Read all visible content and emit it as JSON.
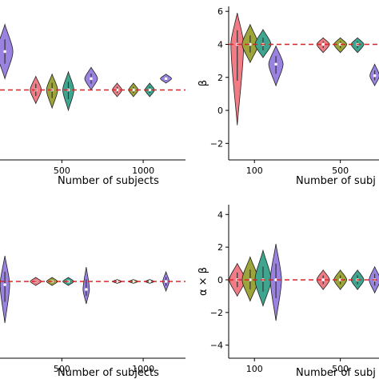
{
  "chart_data": [
    {
      "type": "violin",
      "panel": "top-left",
      "xlabel": "Number of subjects",
      "ylabel": "",
      "xticks": [
        {
          "x": 500,
          "label": "500"
        },
        {
          "x": 1000,
          "label": "1000"
        }
      ],
      "yticks": [],
      "xlim": [
        120,
        1260
      ],
      "ylim": [
        -1.6,
        5.2
      ],
      "reference_y": 1.5,
      "violins": [
        {
          "x": 150,
          "center": 3.2,
          "low": 2.0,
          "high": 4.4,
          "width": 10,
          "color": "#9a82e0"
        },
        {
          "x": 340,
          "center": 1.5,
          "low": 0.9,
          "high": 2.1,
          "width": 7,
          "color": "#f17c86"
        },
        {
          "x": 440,
          "center": 1.5,
          "low": 0.7,
          "high": 2.2,
          "width": 7,
          "color": "#9ca43a"
        },
        {
          "x": 540,
          "center": 1.5,
          "low": 0.6,
          "high": 2.3,
          "width": 7,
          "color": "#3fa58f"
        },
        {
          "x": 680,
          "center": 2.0,
          "low": 1.5,
          "high": 2.5,
          "width": 8,
          "color": "#9a82e0"
        },
        {
          "x": 840,
          "center": 1.5,
          "low": 1.2,
          "high": 1.8,
          "width": 6,
          "color": "#f17c86"
        },
        {
          "x": 940,
          "center": 1.5,
          "low": 1.2,
          "high": 1.8,
          "width": 6,
          "color": "#9ca43a"
        },
        {
          "x": 1040,
          "center": 1.5,
          "low": 1.2,
          "high": 1.8,
          "width": 6,
          "color": "#3fa58f"
        },
        {
          "x": 1140,
          "center": 2.0,
          "low": 1.8,
          "high": 2.2,
          "width": 7,
          "color": "#9a82e0"
        }
      ]
    },
    {
      "type": "violin",
      "panel": "top-right",
      "xlabel": "Number of subj",
      "ylabel": "β",
      "xticks": [
        {
          "x": 100,
          "label": "100"
        },
        {
          "x": 500,
          "label": "500"
        }
      ],
      "yticks": [
        -2,
        0,
        2,
        4,
        6
      ],
      "xlim": [
        -20,
        680
      ],
      "ylim": [
        -3,
        6.3
      ],
      "reference_y": 4,
      "violins": [
        {
          "x": 20,
          "center": 4.0,
          "low": -0.9,
          "high": 5.9,
          "width": 8,
          "color": "#f17c86"
        },
        {
          "x": 80,
          "center": 4.0,
          "low": 2.9,
          "high": 5.2,
          "width": 10,
          "color": "#9ca43a"
        },
        {
          "x": 140,
          "center": 4.0,
          "low": 3.2,
          "high": 4.9,
          "width": 10,
          "color": "#3fa58f"
        },
        {
          "x": 200,
          "center": 2.8,
          "low": 1.5,
          "high": 3.9,
          "width": 9,
          "color": "#9a82e0"
        },
        {
          "x": 420,
          "center": 4.0,
          "low": 3.5,
          "high": 4.4,
          "width": 8,
          "color": "#f17c86"
        },
        {
          "x": 500,
          "center": 4.0,
          "low": 3.5,
          "high": 4.4,
          "width": 8,
          "color": "#9ca43a"
        },
        {
          "x": 580,
          "center": 4.0,
          "low": 3.5,
          "high": 4.4,
          "width": 8,
          "color": "#3fa58f"
        },
        {
          "x": 660,
          "center": 2.1,
          "low": 1.5,
          "high": 2.8,
          "width": 6,
          "color": "#9a82e0"
        }
      ]
    },
    {
      "type": "violin",
      "panel": "bottom-left",
      "xlabel": "Number of subjects",
      "ylabel": "",
      "xticks": [
        {
          "x": 500,
          "label": "500"
        },
        {
          "x": 1000,
          "label": "1000"
        }
      ],
      "yticks": [],
      "xlim": [
        120,
        1260
      ],
      "ylim": [
        -4.8,
        4.8
      ],
      "reference_y": 0,
      "violins": [
        {
          "x": 150,
          "center": -0.2,
          "low": -2.6,
          "high": 1.6,
          "width": 6,
          "color": "#9a82e0"
        },
        {
          "x": 340,
          "center": 0,
          "low": -0.25,
          "high": 0.25,
          "width": 7,
          "color": "#f17c86"
        },
        {
          "x": 440,
          "center": 0,
          "low": -0.25,
          "high": 0.25,
          "width": 7,
          "color": "#9ca43a"
        },
        {
          "x": 540,
          "center": 0,
          "low": -0.25,
          "high": 0.25,
          "width": 7,
          "color": "#3fa58f"
        },
        {
          "x": 650,
          "center": -0.5,
          "low": -1.4,
          "high": 0.9,
          "width": 4,
          "color": "#9a82e0"
        },
        {
          "x": 840,
          "center": 0,
          "low": -0.12,
          "high": 0.12,
          "width": 6,
          "color": "#f17c86"
        },
        {
          "x": 940,
          "center": 0,
          "low": -0.12,
          "high": 0.12,
          "width": 6,
          "color": "#9ca43a"
        },
        {
          "x": 1040,
          "center": 0,
          "low": -0.12,
          "high": 0.12,
          "width": 6,
          "color": "#3fa58f"
        },
        {
          "x": 1140,
          "center": 0,
          "low": -0.6,
          "high": 0.6,
          "width": 4,
          "color": "#9a82e0"
        }
      ]
    },
    {
      "type": "violin",
      "panel": "bottom-right",
      "xlabel": "Number of subj",
      "ylabel": "α × β",
      "xticks": [
        {
          "x": 100,
          "label": "100"
        },
        {
          "x": 500,
          "label": "500"
        }
      ],
      "yticks": [
        -4,
        -2,
        0,
        2,
        4
      ],
      "xlim": [
        -20,
        680
      ],
      "ylim": [
        -4.8,
        4.6
      ],
      "reference_y": 0,
      "violins": [
        {
          "x": 20,
          "center": 0,
          "low": -1.0,
          "high": 1.0,
          "width": 10,
          "color": "#f17c86"
        },
        {
          "x": 80,
          "center": 0,
          "low": -1.3,
          "high": 1.4,
          "width": 10,
          "color": "#9ca43a"
        },
        {
          "x": 140,
          "center": 0,
          "low": -1.6,
          "high": 1.8,
          "width": 10,
          "color": "#3fa58f"
        },
        {
          "x": 200,
          "center": 0,
          "low": -2.5,
          "high": 2.2,
          "width": 7,
          "color": "#9a82e0"
        },
        {
          "x": 420,
          "center": 0,
          "low": -0.6,
          "high": 0.6,
          "width": 8,
          "color": "#f17c86"
        },
        {
          "x": 500,
          "center": 0,
          "low": -0.6,
          "high": 0.6,
          "width": 8,
          "color": "#9ca43a"
        },
        {
          "x": 580,
          "center": 0,
          "low": -0.6,
          "high": 0.6,
          "width": 8,
          "color": "#3fa58f"
        },
        {
          "x": 660,
          "center": 0,
          "low": -0.8,
          "high": 0.8,
          "width": 7,
          "color": "#9a82e0"
        }
      ]
    }
  ]
}
